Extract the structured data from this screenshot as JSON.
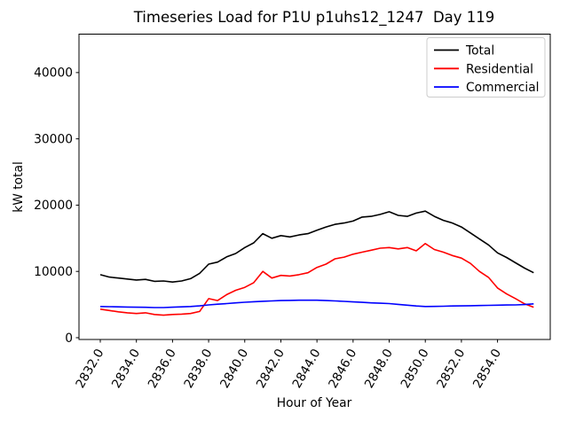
{
  "chart_data": {
    "type": "line",
    "title": "Timeseries Load for P1U p1uhs12_1247  Day 119",
    "xlabel": "Hour of Year",
    "ylabel": "kW total",
    "grid": false,
    "legend_position": "upper right",
    "xlim": [
      2830.82,
      2856.92
    ],
    "ylim": [
      -270,
      45800
    ],
    "x_ticks": [
      2832,
      2834,
      2836,
      2838,
      2840,
      2842,
      2844,
      2846,
      2848,
      2850,
      2852,
      2854
    ],
    "x_tick_labels": [
      "2832.0",
      "2834.0",
      "2836.0",
      "2838.0",
      "2840.0",
      "2842.0",
      "2844.0",
      "2846.0",
      "2848.0",
      "2850.0",
      "2852.0",
      "2854.0"
    ],
    "x_tick_rotation_deg": 60,
    "y_ticks": [
      0,
      10000,
      20000,
      30000,
      40000
    ],
    "y_tick_labels": [
      "0",
      "10000",
      "20000",
      "30000",
      "40000"
    ],
    "x": [
      2832,
      2832.5,
      2833,
      2833.5,
      2834,
      2834.5,
      2835,
      2835.5,
      2836,
      2836.5,
      2837,
      2837.5,
      2838,
      2838.5,
      2839,
      2839.5,
      2840,
      2840.5,
      2841,
      2841.5,
      2842,
      2842.5,
      2843,
      2843.5,
      2844,
      2844.5,
      2845,
      2845.5,
      2846,
      2846.5,
      2847,
      2847.5,
      2848,
      2848.5,
      2849,
      2849.5,
      2850,
      2850.5,
      2851,
      2851.5,
      2852,
      2852.5,
      2853,
      2853.5,
      2854,
      2854.5,
      2855,
      2855.5,
      2856
    ],
    "series": [
      {
        "name": "Total",
        "color": "#000000",
        "values": [
          9500,
          9150,
          9000,
          8850,
          8700,
          8800,
          8500,
          8550,
          8400,
          8550,
          8900,
          9700,
          11100,
          11400,
          12200,
          12700,
          13600,
          14300,
          15700,
          15000,
          15400,
          15200,
          15500,
          15700,
          16200,
          16700,
          17100,
          17300,
          17600,
          18200,
          18300,
          18600,
          19000,
          18450,
          18300,
          18800,
          19100,
          18300,
          17700,
          17300,
          16700,
          15800,
          14900,
          14000,
          12800,
          12100,
          11300,
          10500,
          9800
        ]
      },
      {
        "name": "Residential",
        "color": "#ff0000",
        "values": [
          4300,
          4100,
          3900,
          3750,
          3650,
          3750,
          3500,
          3400,
          3500,
          3550,
          3650,
          3950,
          5900,
          5600,
          6500,
          7150,
          7600,
          8300,
          10000,
          9000,
          9400,
          9300,
          9500,
          9800,
          10600,
          11100,
          11900,
          12150,
          12600,
          12900,
          13200,
          13500,
          13600,
          13400,
          13600,
          13100,
          14200,
          13300,
          12900,
          12400,
          12000,
          11200,
          10000,
          9100,
          7500,
          6600,
          5900,
          5100,
          4600
        ]
      },
      {
        "name": "Commercial",
        "color": "#0000ff",
        "values": [
          4700,
          4680,
          4650,
          4620,
          4600,
          4580,
          4550,
          4550,
          4600,
          4650,
          4700,
          4800,
          4950,
          5050,
          5150,
          5250,
          5350,
          5430,
          5500,
          5550,
          5600,
          5630,
          5650,
          5660,
          5650,
          5600,
          5550,
          5480,
          5400,
          5330,
          5250,
          5200,
          5150,
          5020,
          4900,
          4780,
          4700,
          4720,
          4750,
          4780,
          4800,
          4830,
          4850,
          4880,
          4900,
          4930,
          4950,
          5000,
          5100
        ]
      }
    ]
  }
}
